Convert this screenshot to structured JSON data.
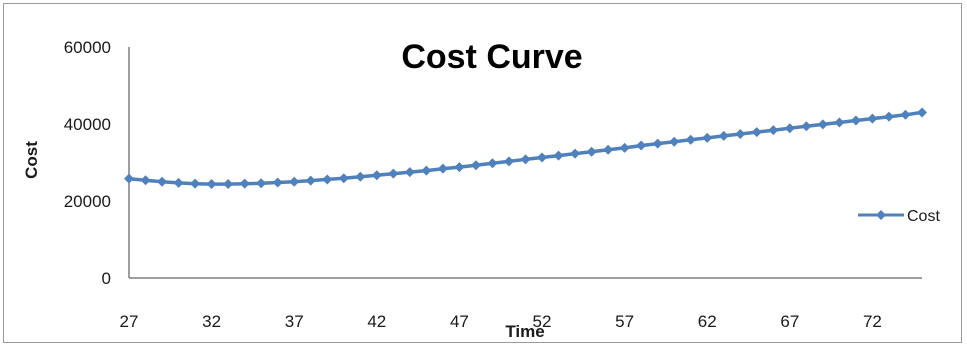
{
  "chart_data": {
    "type": "line",
    "title": "Cost Curve",
    "xlabel": "Time",
    "ylabel": "Cost",
    "xlim": [
      27,
      75
    ],
    "ylim": [
      0,
      60000
    ],
    "x_ticks": [
      27,
      32,
      37,
      42,
      47,
      52,
      57,
      62,
      67,
      72
    ],
    "y_ticks": [
      0,
      20000,
      40000,
      60000
    ],
    "y_tick_labels": [
      "0",
      "20000",
      "40000",
      "60000"
    ],
    "grid": false,
    "legend": {
      "position": "right",
      "entries": [
        "Cost"
      ]
    },
    "colors": {
      "series": "#4f81bd",
      "axis": "#7f7f7f"
    },
    "series": [
      {
        "name": "Cost",
        "x": [
          27,
          28,
          29,
          30,
          31,
          32,
          33,
          34,
          35,
          36,
          37,
          38,
          39,
          40,
          41,
          42,
          43,
          44,
          45,
          46,
          47,
          48,
          49,
          50,
          51,
          52,
          53,
          54,
          55,
          56,
          57,
          58,
          59,
          60,
          61,
          62,
          63,
          64,
          65,
          66,
          67,
          68,
          69,
          70,
          71,
          72,
          73,
          74,
          75
        ],
        "values": [
          25800,
          25400,
          25000,
          24700,
          24500,
          24400,
          24400,
          24500,
          24600,
          24800,
          25000,
          25300,
          25600,
          25900,
          26300,
          26700,
          27100,
          27500,
          27900,
          28400,
          28800,
          29300,
          29800,
          30300,
          30800,
          31300,
          31800,
          32300,
          32800,
          33300,
          33800,
          34400,
          34900,
          35400,
          35900,
          36400,
          36900,
          37400,
          37900,
          38400,
          38900,
          39400,
          39900,
          40400,
          40900,
          41400,
          41900,
          42400,
          43000
        ]
      }
    ]
  }
}
